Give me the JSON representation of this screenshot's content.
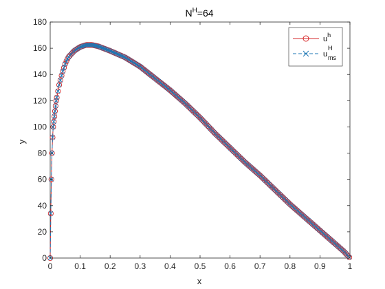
{
  "chart_data": {
    "type": "line",
    "title": {
      "base": "N",
      "sup": "H",
      "rest": "=64"
    },
    "xlabel": "x",
    "ylabel": "y",
    "xlim": [
      0,
      1
    ],
    "ylim": [
      0,
      180
    ],
    "xticks": [
      0,
      0.1,
      0.2,
      0.3,
      0.4,
      0.5,
      0.6,
      0.7,
      0.8,
      0.9,
      1
    ],
    "xtick_labels": [
      "0",
      "0.1",
      "0.2",
      "0.3",
      "0.4",
      "0.5",
      "0.6",
      "0.7",
      "0.8",
      "0.9",
      "1"
    ],
    "yticks": [
      0,
      20,
      40,
      60,
      80,
      100,
      120,
      140,
      160,
      180
    ],
    "ytick_labels": [
      "0",
      "20",
      "40",
      "60",
      "80",
      "100",
      "120",
      "140",
      "160",
      "180"
    ],
    "grid": false,
    "legend_position": "top-right",
    "x": [
      0,
      0.002,
      0.004,
      0.006,
      0.008,
      0.01,
      0.015,
      0.02,
      0.03,
      0.04,
      0.05,
      0.06,
      0.08,
      0.1,
      0.12,
      0.14,
      0.16,
      0.2,
      0.25,
      0.3,
      0.35,
      0.4,
      0.45,
      0.5,
      0.55,
      0.6,
      0.65,
      0.7,
      0.75,
      0.8,
      0.85,
      0.9,
      0.95,
      0.98,
      1
    ],
    "series": [
      {
        "name": {
          "base": "u",
          "sup": "h",
          "sub": ""
        },
        "color": "#d62728",
        "marker": "circle",
        "line_style": "solid",
        "values": [
          0,
          34,
          60,
          80,
          92,
          100,
          110,
          120,
          132,
          141,
          148,
          153,
          158,
          161,
          162.5,
          162.5,
          161.5,
          158,
          153,
          146,
          137,
          128,
          118,
          107,
          95,
          84,
          73,
          63,
          52,
          41,
          31,
          21,
          11,
          5,
          0
        ]
      },
      {
        "name": {
          "base": "u",
          "sup": "H",
          "sub": "ms"
        },
        "color": "#1f77b4",
        "marker": "x",
        "line_style": "dashed",
        "values": [
          0,
          34,
          60,
          80,
          92,
          100,
          110,
          120,
          132,
          141,
          148,
          153,
          158,
          161,
          162.5,
          162.5,
          161.5,
          158,
          153,
          146,
          137,
          128,
          118,
          107,
          95,
          84,
          73,
          63,
          52,
          41,
          31,
          21,
          11,
          5,
          0
        ]
      }
    ]
  }
}
